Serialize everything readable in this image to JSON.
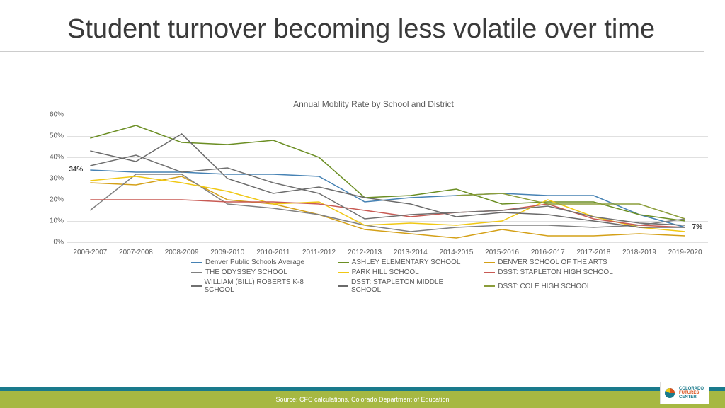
{
  "title": "Student turnover becoming less volatile over time",
  "chart": {
    "type": "line",
    "title": "Annual Moblity Rate by School and District",
    "ylabel": "",
    "ylim": [
      0,
      60
    ],
    "ytick_step": 10,
    "ytick_format": "%",
    "grid_color": "#e0e0e0",
    "background_color": "#ffffff",
    "label_fontsize": 10,
    "title_fontsize": 12,
    "line_width": 1.5,
    "categories": [
      "2006-2007",
      "2007-2008",
      "2008-2009",
      "2009-2010",
      "2010-2011",
      "2011-2012",
      "2012-2013",
      "2013-2014",
      "2014-2015",
      "2015-2016",
      "2016-2017",
      "2017-2018",
      "2018-2019",
      "2019-2020"
    ],
    "start_label": "34%",
    "end_label": "7%",
    "series": [
      {
        "name": "Denver Public Schools Average",
        "color": "#4682b4",
        "values": [
          34,
          33,
          33,
          32,
          32,
          31,
          19,
          21,
          22,
          23,
          22,
          22,
          13,
          7
        ]
      },
      {
        "name": "ASHLEY ELEMENTARY SCHOOL",
        "color": "#6b8e23",
        "values": [
          49,
          55,
          47,
          46,
          48,
          40,
          21,
          22,
          25,
          18,
          19,
          19,
          13,
          10
        ]
      },
      {
        "name": "DENVER SCHOOL OF THE ARTS",
        "color": "#d4a017",
        "values": [
          28,
          27,
          31,
          20,
          18,
          13,
          6,
          4,
          2,
          6,
          3,
          3,
          4,
          3
        ]
      },
      {
        "name": "THE ODYSSEY SCHOOL",
        "color": "#808080",
        "values": [
          15,
          32,
          32,
          18,
          16,
          13,
          8,
          5,
          7,
          8,
          8,
          7,
          8,
          11
        ]
      },
      {
        "name": "PARK HILL SCHOOL",
        "color": "#f0c814",
        "values": [
          29,
          31,
          28,
          24,
          18,
          19,
          8,
          9,
          8,
          10,
          20,
          12,
          7,
          5
        ]
      },
      {
        "name": "DSST: STAPLETON HIGH SCHOOL",
        "color": "#c85a54",
        "values": [
          20,
          20,
          20,
          19,
          19,
          18,
          15,
          12,
          14,
          15,
          18,
          11,
          8,
          7
        ]
      },
      {
        "name": "WILLIAM (BILL) ROBERTS K-8 SCHOOL",
        "color": "#707070",
        "values": [
          36,
          41,
          33,
          35,
          28,
          23,
          11,
          13,
          14,
          15,
          17,
          12,
          9,
          8
        ]
      },
      {
        "name": "DSST: STAPLETON MIDDLE SCHOOL",
        "color": "#6a6a6a",
        "values": [
          43,
          38,
          51,
          30,
          23,
          26,
          21,
          18,
          12,
          14,
          13,
          10,
          7,
          7
        ]
      },
      {
        "name": "DSST: COLE HIGH SCHOOL",
        "color": "#8b9d3a",
        "values": [
          null,
          null,
          null,
          null,
          null,
          null,
          null,
          null,
          22,
          23,
          18,
          18,
          18,
          11
        ]
      }
    ]
  },
  "footer": {
    "source_text": "Source: CFC calculations, Colorado Department of Education",
    "teal_color": "#1a7a8c",
    "green_color": "#a6b842"
  },
  "logo": {
    "line1": "COLORADO",
    "line2": "FUTURES",
    "line3": "CENTER"
  }
}
